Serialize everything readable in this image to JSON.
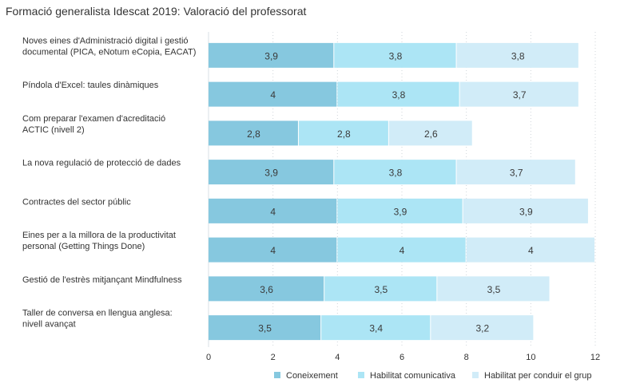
{
  "chart_data": {
    "type": "bar",
    "orientation": "horizontal",
    "stacked": true,
    "title": "Formació generalista Idescat 2019: Valoració del professorat",
    "xlabel": "",
    "ylabel": "",
    "xlim": [
      0,
      12
    ],
    "x_ticks": [
      "0",
      "2",
      "4",
      "6",
      "8",
      "10",
      "12"
    ],
    "grid": "vertical dotted",
    "legend_position": "bottom-right",
    "categories": [
      [
        "Noves eines d'Administració digital i gestió",
        "documental (PICA, eNotum eCopia, EACAT)"
      ],
      [
        "Píndola d'Excel: taules dinàmiques"
      ],
      [
        "Com preparar l'examen d'acreditació",
        "ACTIC (nivell 2)"
      ],
      [
        "La nova regulació de protecció de dades"
      ],
      [
        "Contractes del sector públic"
      ],
      [
        "Eines per a la millora de la productivitat",
        "personal (Getting Things Done)"
      ],
      [
        "Gestió de l'estrès mitjançant Mindfulness"
      ],
      [
        "Taller de conversa en llengua anglesa:",
        "nivell avançat"
      ]
    ],
    "series": [
      {
        "name": "Coneixement",
        "color": "#86c8df",
        "values": [
          3.9,
          4.0,
          2.8,
          3.9,
          4.0,
          4.0,
          3.6,
          3.5
        ],
        "labels": [
          "3,9",
          "4",
          "2,8",
          "3,9",
          "4",
          "4",
          "3,6",
          "3,5"
        ]
      },
      {
        "name": "Habilitat comunicativa",
        "color": "#ace5f5",
        "values": [
          3.8,
          3.8,
          2.8,
          3.8,
          3.9,
          4.0,
          3.5,
          3.4
        ],
        "labels": [
          "3,8",
          "3,8",
          "2,8",
          "3,8",
          "3,9",
          "4",
          "3,5",
          "3,4"
        ]
      },
      {
        "name": "Habilitat per conduir el grup",
        "color": "#d1ecf8",
        "values": [
          3.8,
          3.7,
          2.6,
          3.7,
          3.9,
          4.0,
          3.5,
          3.2
        ],
        "labels": [
          "3,8",
          "3,7",
          "2,6",
          "3,7",
          "3,9",
          "4",
          "3,5",
          "3,2"
        ]
      }
    ]
  }
}
